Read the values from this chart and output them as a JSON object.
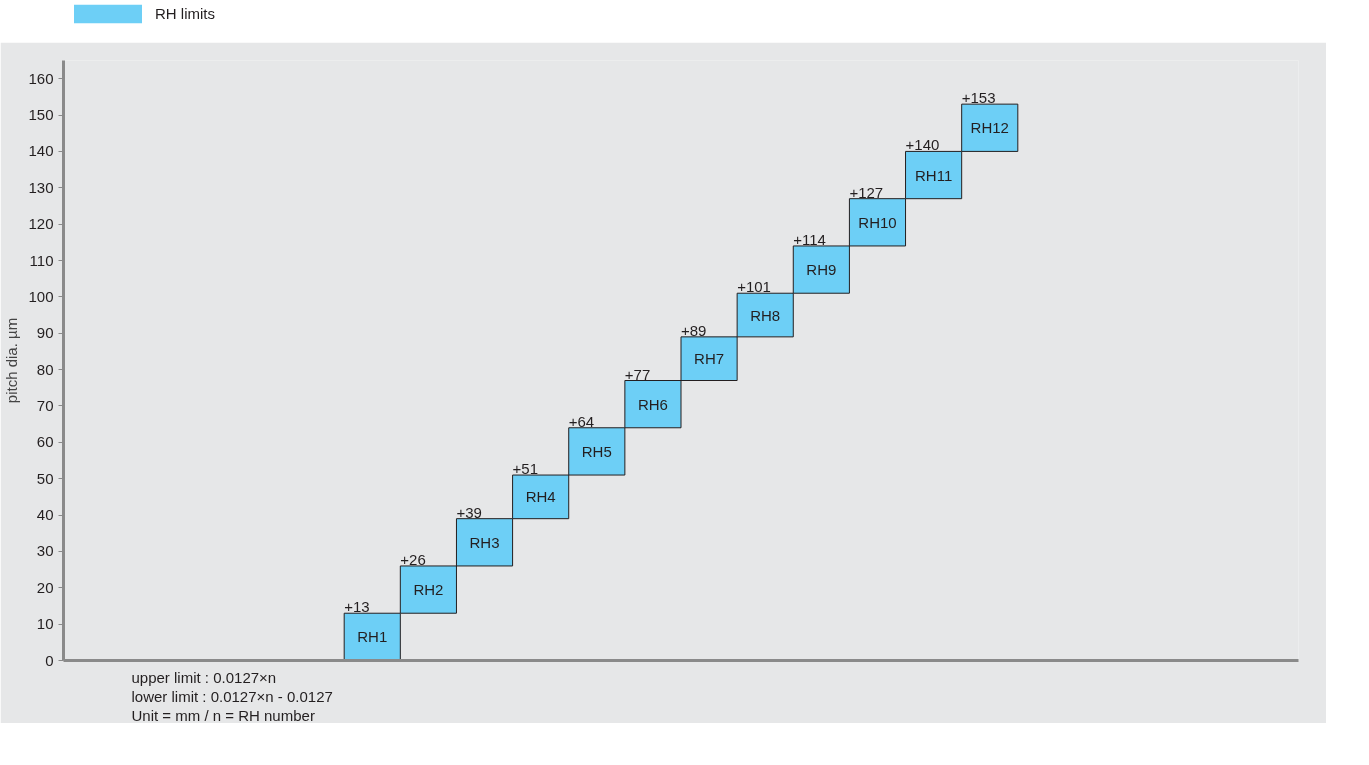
{
  "chart_data": {
    "type": "bar",
    "ylabel": "pitch dia. µm",
    "categories": [
      null,
      null,
      null,
      null,
      null,
      "RH1",
      "RH2",
      "RH3",
      "RH4",
      "RH5",
      "RH6",
      "RH7",
      "RH8",
      "RH9",
      "RH10",
      "RH11",
      "RH12",
      null,
      null,
      null,
      null,
      null
    ],
    "series": [
      {
        "name": "RH limits",
        "color": "#6dcff6",
        "base": [
          null,
          null,
          null,
          null,
          null,
          0,
          13,
          26,
          39,
          51,
          64,
          77,
          89,
          101,
          114,
          127,
          140,
          null,
          null,
          null,
          null,
          null
        ],
        "values": [
          null,
          null,
          null,
          null,
          null,
          13,
          13,
          13,
          12,
          13,
          13,
          12,
          12,
          13,
          13,
          13,
          13,
          null,
          null,
          null,
          null,
          null
        ],
        "value_labels": [
          null,
          null,
          null,
          null,
          null,
          "+13",
          "+26",
          "+39",
          "+51",
          "+64",
          "+77",
          "+89",
          "+101",
          "+114",
          "+127",
          "+140",
          "+153",
          null,
          null,
          null,
          null,
          null
        ]
      }
    ],
    "ylim": [
      0,
      165
    ],
    "yticks": [
      0,
      10,
      20,
      30,
      40,
      50,
      60,
      70,
      80,
      90,
      100,
      110,
      120,
      130,
      140,
      150,
      160
    ],
    "tick_labels": "y",
    "grid": false,
    "legend": "top left",
    "annotations": [
      "upper limit : 0.0127×n",
      "lower limit :  0.0127×n - 0.0127",
      "Unit = mm / n = RH number"
    ]
  }
}
